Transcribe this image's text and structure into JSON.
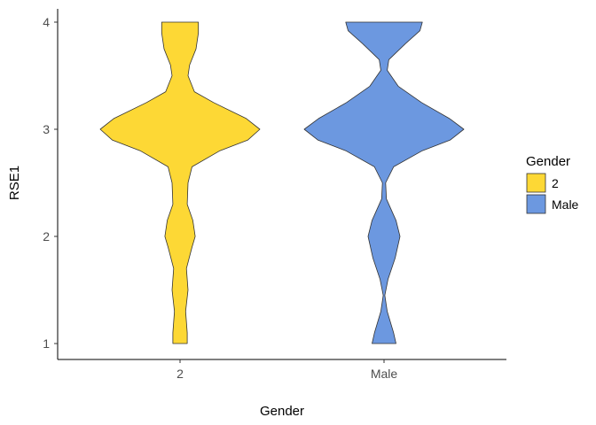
{
  "chart_data": {
    "type": "violin",
    "xlabel": "Gender",
    "ylabel": "RSE1",
    "categories": [
      "2",
      "Male"
    ],
    "ylim": [
      1,
      4
    ],
    "yticks": [
      1,
      2,
      3,
      4
    ],
    "grid": false,
    "legend": {
      "title": "Gender",
      "position": "right",
      "entries": [
        {
          "label": "2",
          "color": "#FDD835"
        },
        {
          "label": "Male",
          "color": "#6C98E0"
        }
      ]
    },
    "series": [
      {
        "name": "2",
        "color": "#FDD835",
        "density": [
          [
            1.0,
            0.09
          ],
          [
            1.1,
            0.09
          ],
          [
            1.3,
            0.07
          ],
          [
            1.5,
            0.1
          ],
          [
            1.7,
            0.08
          ],
          [
            1.9,
            0.15
          ],
          [
            2.0,
            0.19
          ],
          [
            2.15,
            0.16
          ],
          [
            2.3,
            0.09
          ],
          [
            2.5,
            0.1
          ],
          [
            2.65,
            0.15
          ],
          [
            2.8,
            0.5
          ],
          [
            2.9,
            0.85
          ],
          [
            3.0,
            1.0
          ],
          [
            3.1,
            0.83
          ],
          [
            3.25,
            0.42
          ],
          [
            3.35,
            0.18
          ],
          [
            3.5,
            0.1
          ],
          [
            3.6,
            0.12
          ],
          [
            3.75,
            0.2
          ],
          [
            3.9,
            0.23
          ],
          [
            4.0,
            0.23
          ]
        ]
      },
      {
        "name": "Male",
        "color": "#6C98E0",
        "density": [
          [
            1.0,
            0.15
          ],
          [
            1.1,
            0.12
          ],
          [
            1.3,
            0.04
          ],
          [
            1.45,
            0.01
          ],
          [
            1.6,
            0.05
          ],
          [
            1.8,
            0.14
          ],
          [
            2.0,
            0.2
          ],
          [
            2.15,
            0.15
          ],
          [
            2.35,
            0.03
          ],
          [
            2.5,
            0.02
          ],
          [
            2.65,
            0.12
          ],
          [
            2.8,
            0.48
          ],
          [
            2.9,
            0.83
          ],
          [
            3.0,
            1.0
          ],
          [
            3.1,
            0.82
          ],
          [
            3.25,
            0.47
          ],
          [
            3.4,
            0.18
          ],
          [
            3.55,
            0.04
          ],
          [
            3.65,
            0.06
          ],
          [
            3.8,
            0.27
          ],
          [
            3.92,
            0.45
          ],
          [
            4.0,
            0.48
          ]
        ]
      }
    ]
  }
}
